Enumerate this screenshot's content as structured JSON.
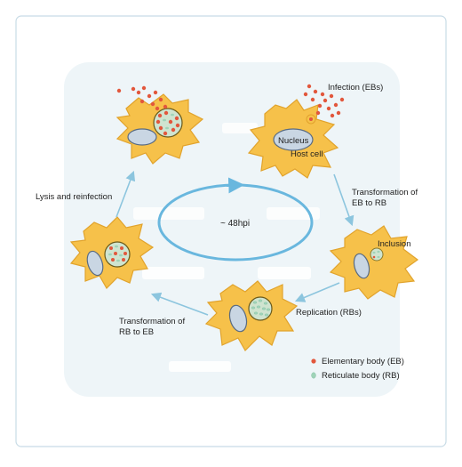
{
  "colors": {
    "frame_border": "#c8dbe6",
    "panel": "#eef5f8",
    "cell_fill": "#f6c14a",
    "cell_edge": "#e1a32c",
    "nucleus_fill": "#c9d6e3",
    "nucleus_edge": "#596b82",
    "eb_red": "#e2573c",
    "rb_green": "#9fd3b8",
    "inclusion_fill": "#cfe4d0",
    "arrow": "#8cc5de",
    "cycle": "#69b7de"
  },
  "labels": {
    "infection": "Infection (EBs)",
    "nucleus": "Nucleus",
    "host_cell": "Host cell",
    "transform_eb_rb_1": "Transformation of",
    "transform_eb_rb_2": "EB to RB",
    "inclusion": "Inclusion",
    "replication": "Replication (RBs)",
    "transform_rb_eb_1": "Transformation of",
    "transform_rb_eb_2": "RB to EB",
    "lysis": "Lysis and reinfection",
    "cycle_time": "~ 48hpi"
  },
  "legend": {
    "eb_label": "Elementary body (EB)",
    "rb_label": "Reticulate body (RB)"
  }
}
